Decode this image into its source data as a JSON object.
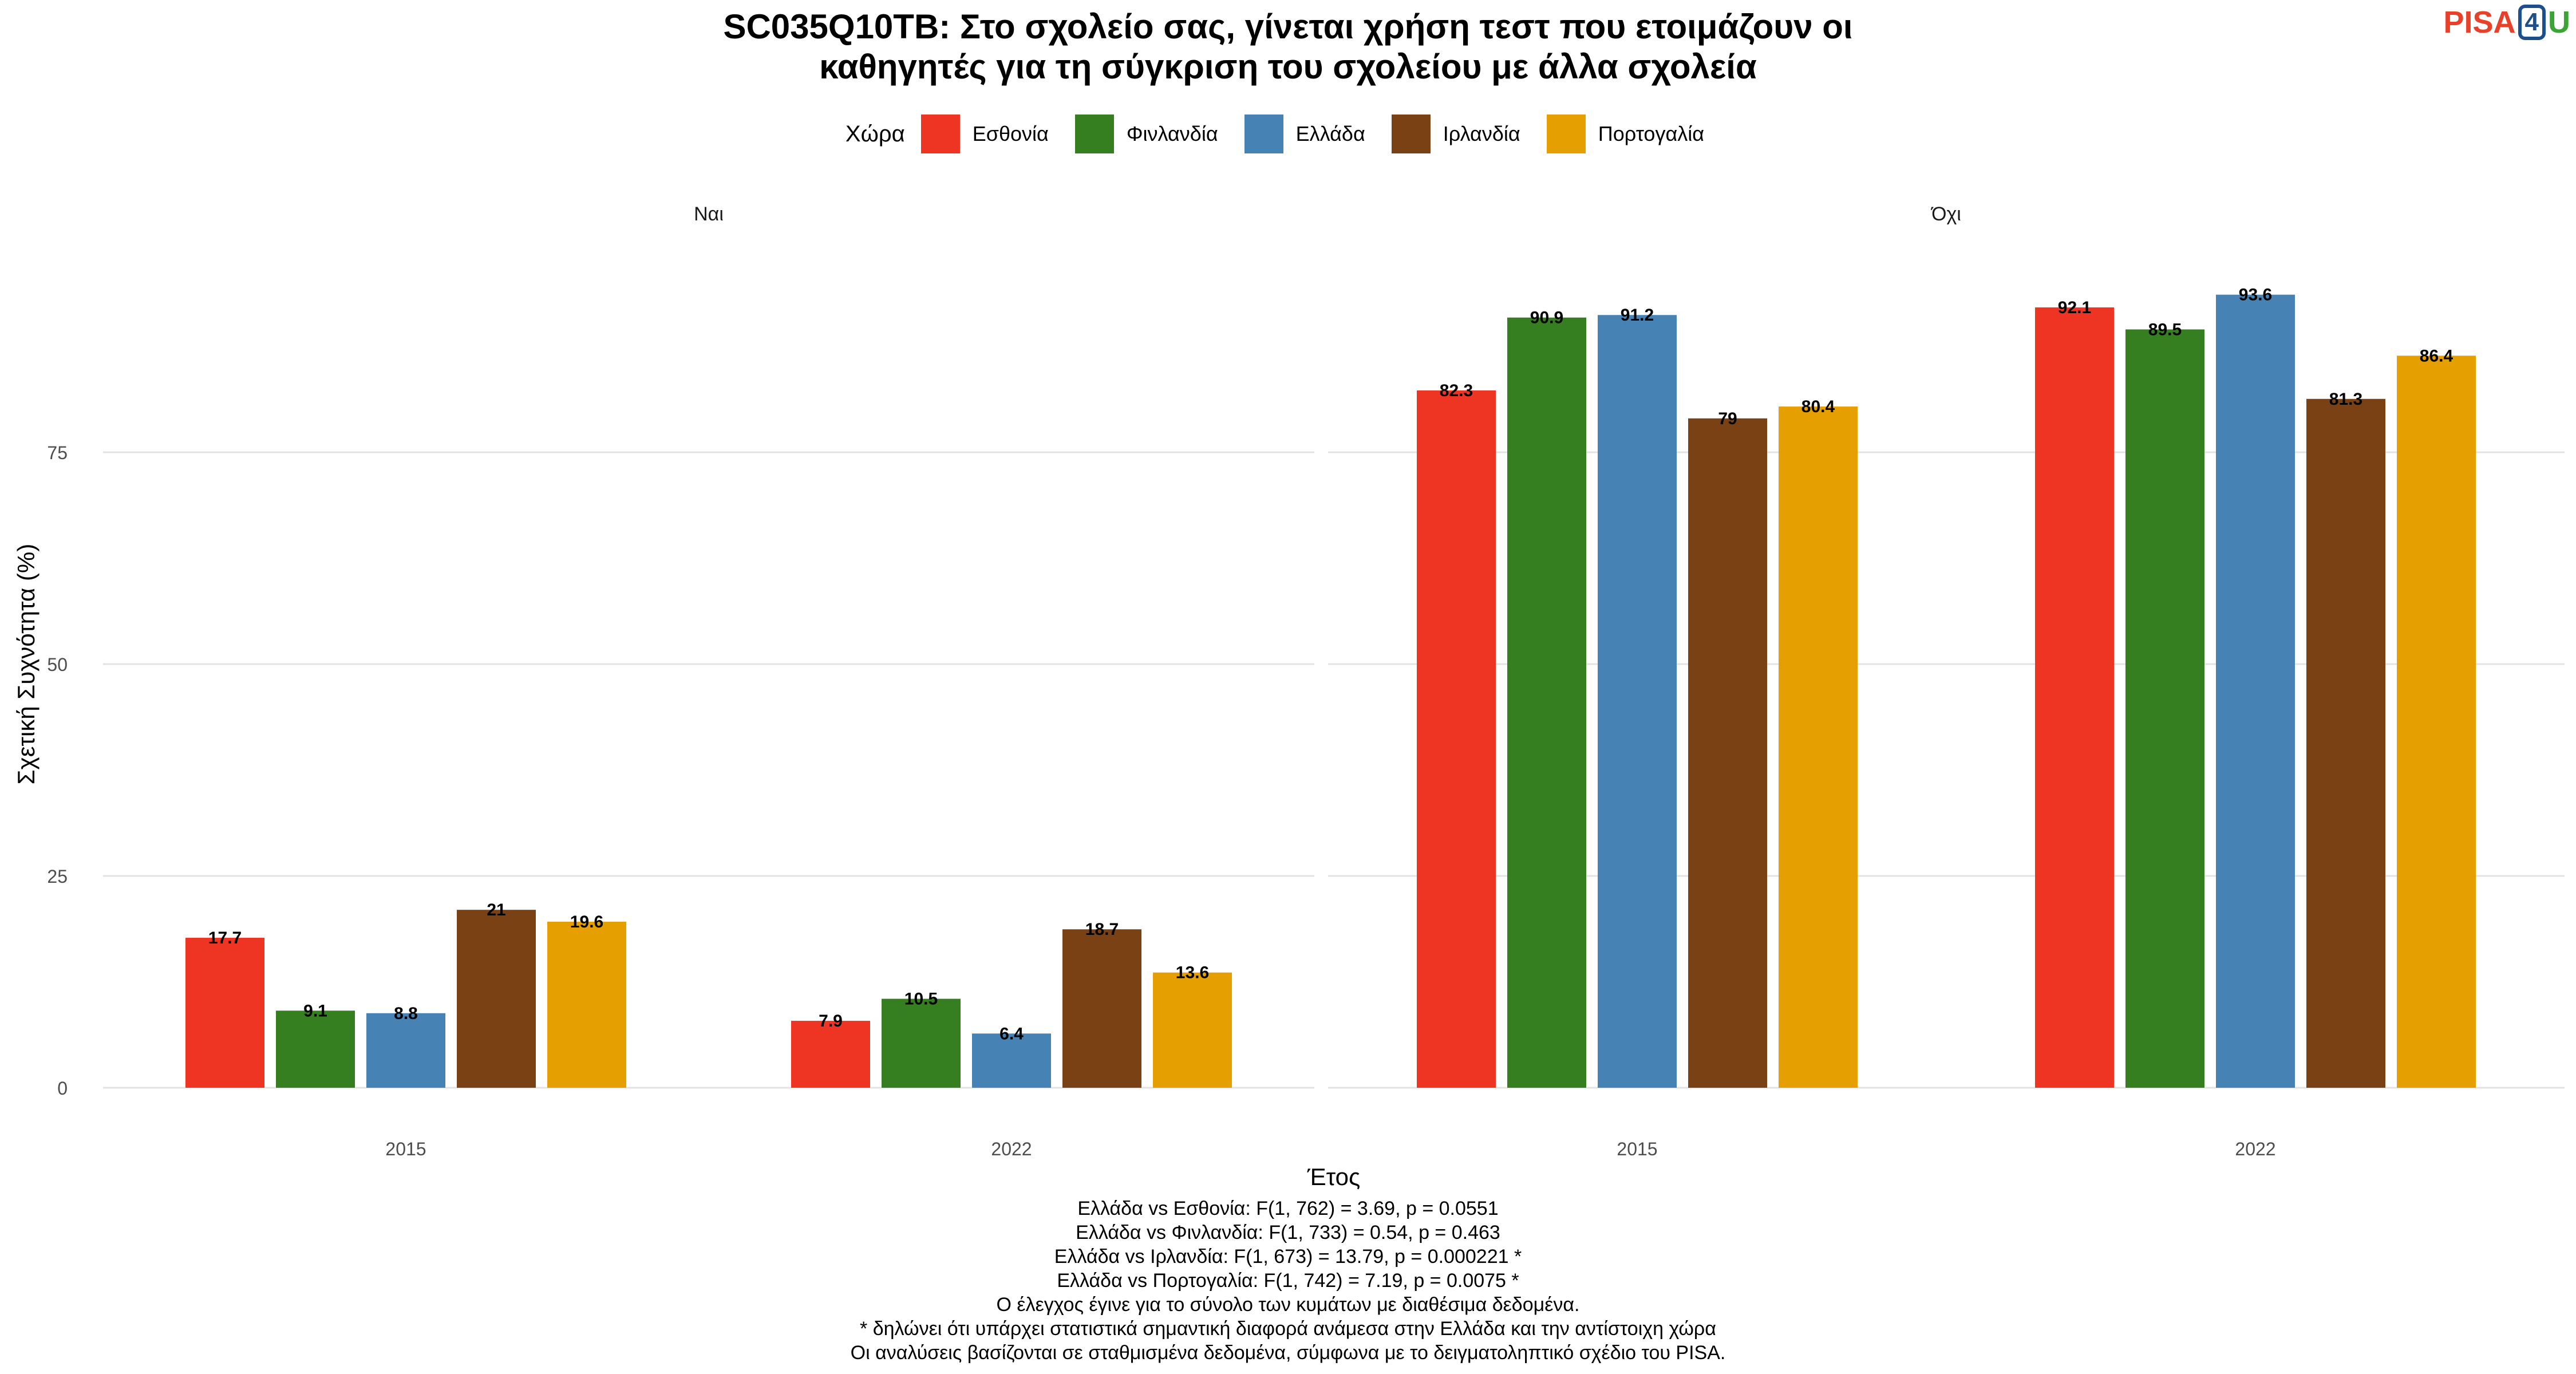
{
  "title": {
    "line1": "SC035Q10TB: Στο σχολείο σας, γίνεται χρήση τεστ που ετοιμάζουν οι",
    "line2": "καθηγητές για τη σύγκριση του σχολείου με άλλα σχολεία"
  },
  "logo": {
    "part1": "PISA",
    "part2": "4",
    "part3": "U"
  },
  "legend": {
    "title": "Χώρα"
  },
  "colors": {
    "Εσθονία": "#ee3524",
    "Φινλανδία": "#367f20",
    "Ελλάδα": "#4682b4",
    "Ιρλανδία": "#7a4214",
    "Πορτογαλία": "#e69f00"
  },
  "chart_data": {
    "type": "bar",
    "facets": [
      "Ναι",
      "Όχι"
    ],
    "categories": [
      "2015",
      "2022"
    ],
    "xlabel": "Έτος",
    "ylabel": "Σχετική Συχνότητα (%)",
    "yticks": [
      0,
      25,
      50,
      75
    ],
    "ylim": [
      0,
      100
    ],
    "grid": true,
    "legend_position": "top",
    "series": [
      {
        "name": "Εσθονία",
        "values": {
          "Ναι": [
            17.7,
            7.9
          ],
          "Όχι": [
            82.3,
            92.1
          ]
        },
        "labels": {
          "Ναι": [
            "17.7",
            "7.9"
          ],
          "Όχι": [
            "82.3",
            "92.1"
          ]
        }
      },
      {
        "name": "Φινλανδία",
        "values": {
          "Ναι": [
            9.1,
            10.5
          ],
          "Όχι": [
            90.9,
            89.5
          ]
        },
        "labels": {
          "Ναι": [
            "9.1",
            "10.5"
          ],
          "Όχι": [
            "90.9",
            "89.5"
          ]
        }
      },
      {
        "name": "Ελλάδα",
        "values": {
          "Ναι": [
            8.8,
            6.4
          ],
          "Όχι": [
            91.2,
            93.6
          ]
        },
        "labels": {
          "Ναι": [
            "8.8",
            "6.4"
          ],
          "Όχι": [
            "91.2",
            "93.6"
          ]
        }
      },
      {
        "name": "Ιρλανδία",
        "values": {
          "Ναι": [
            21,
            18.7
          ],
          "Όχι": [
            79,
            81.3
          ]
        },
        "labels": {
          "Ναι": [
            "21",
            "18.7"
          ],
          "Όχι": [
            "79",
            "81.3"
          ]
        }
      },
      {
        "name": "Πορτογαλία",
        "values": {
          "Ναι": [
            19.6,
            13.6
          ],
          "Όχι": [
            80.4,
            86.4
          ]
        },
        "labels": {
          "Ναι": [
            "19.6",
            "13.6"
          ],
          "Όχι": [
            "80.4",
            "86.4"
          ]
        }
      }
    ]
  },
  "caption": [
    "Ελλάδα vs Εσθονία: F(1, 762) = 3.69, p = 0.0551",
    "Ελλάδα vs Φινλανδία: F(1, 733) = 0.54, p = 0.463",
    "Ελλάδα vs Ιρλανδία: F(1, 673) = 13.79, p = 0.000221 *",
    "Ελλάδα vs Πορτογαλία: F(1, 742) = 7.19, p = 0.0075 *",
    "Ο έλεγχος έγινε για το σύνολο των κυμάτων με διαθέσιμα δεδομένα.",
    "* δηλώνει ότι υπάρχει στατιστικά σημαντική διαφορά ανάμεσα στην Ελλάδα και την αντίστοιχη χώρα",
    "Οι αναλύσεις βασίζονται σε σταθμισμένα δεδομένα, σύμφωνα με το δειγματοληπτικό σχέδιο του PISA."
  ]
}
